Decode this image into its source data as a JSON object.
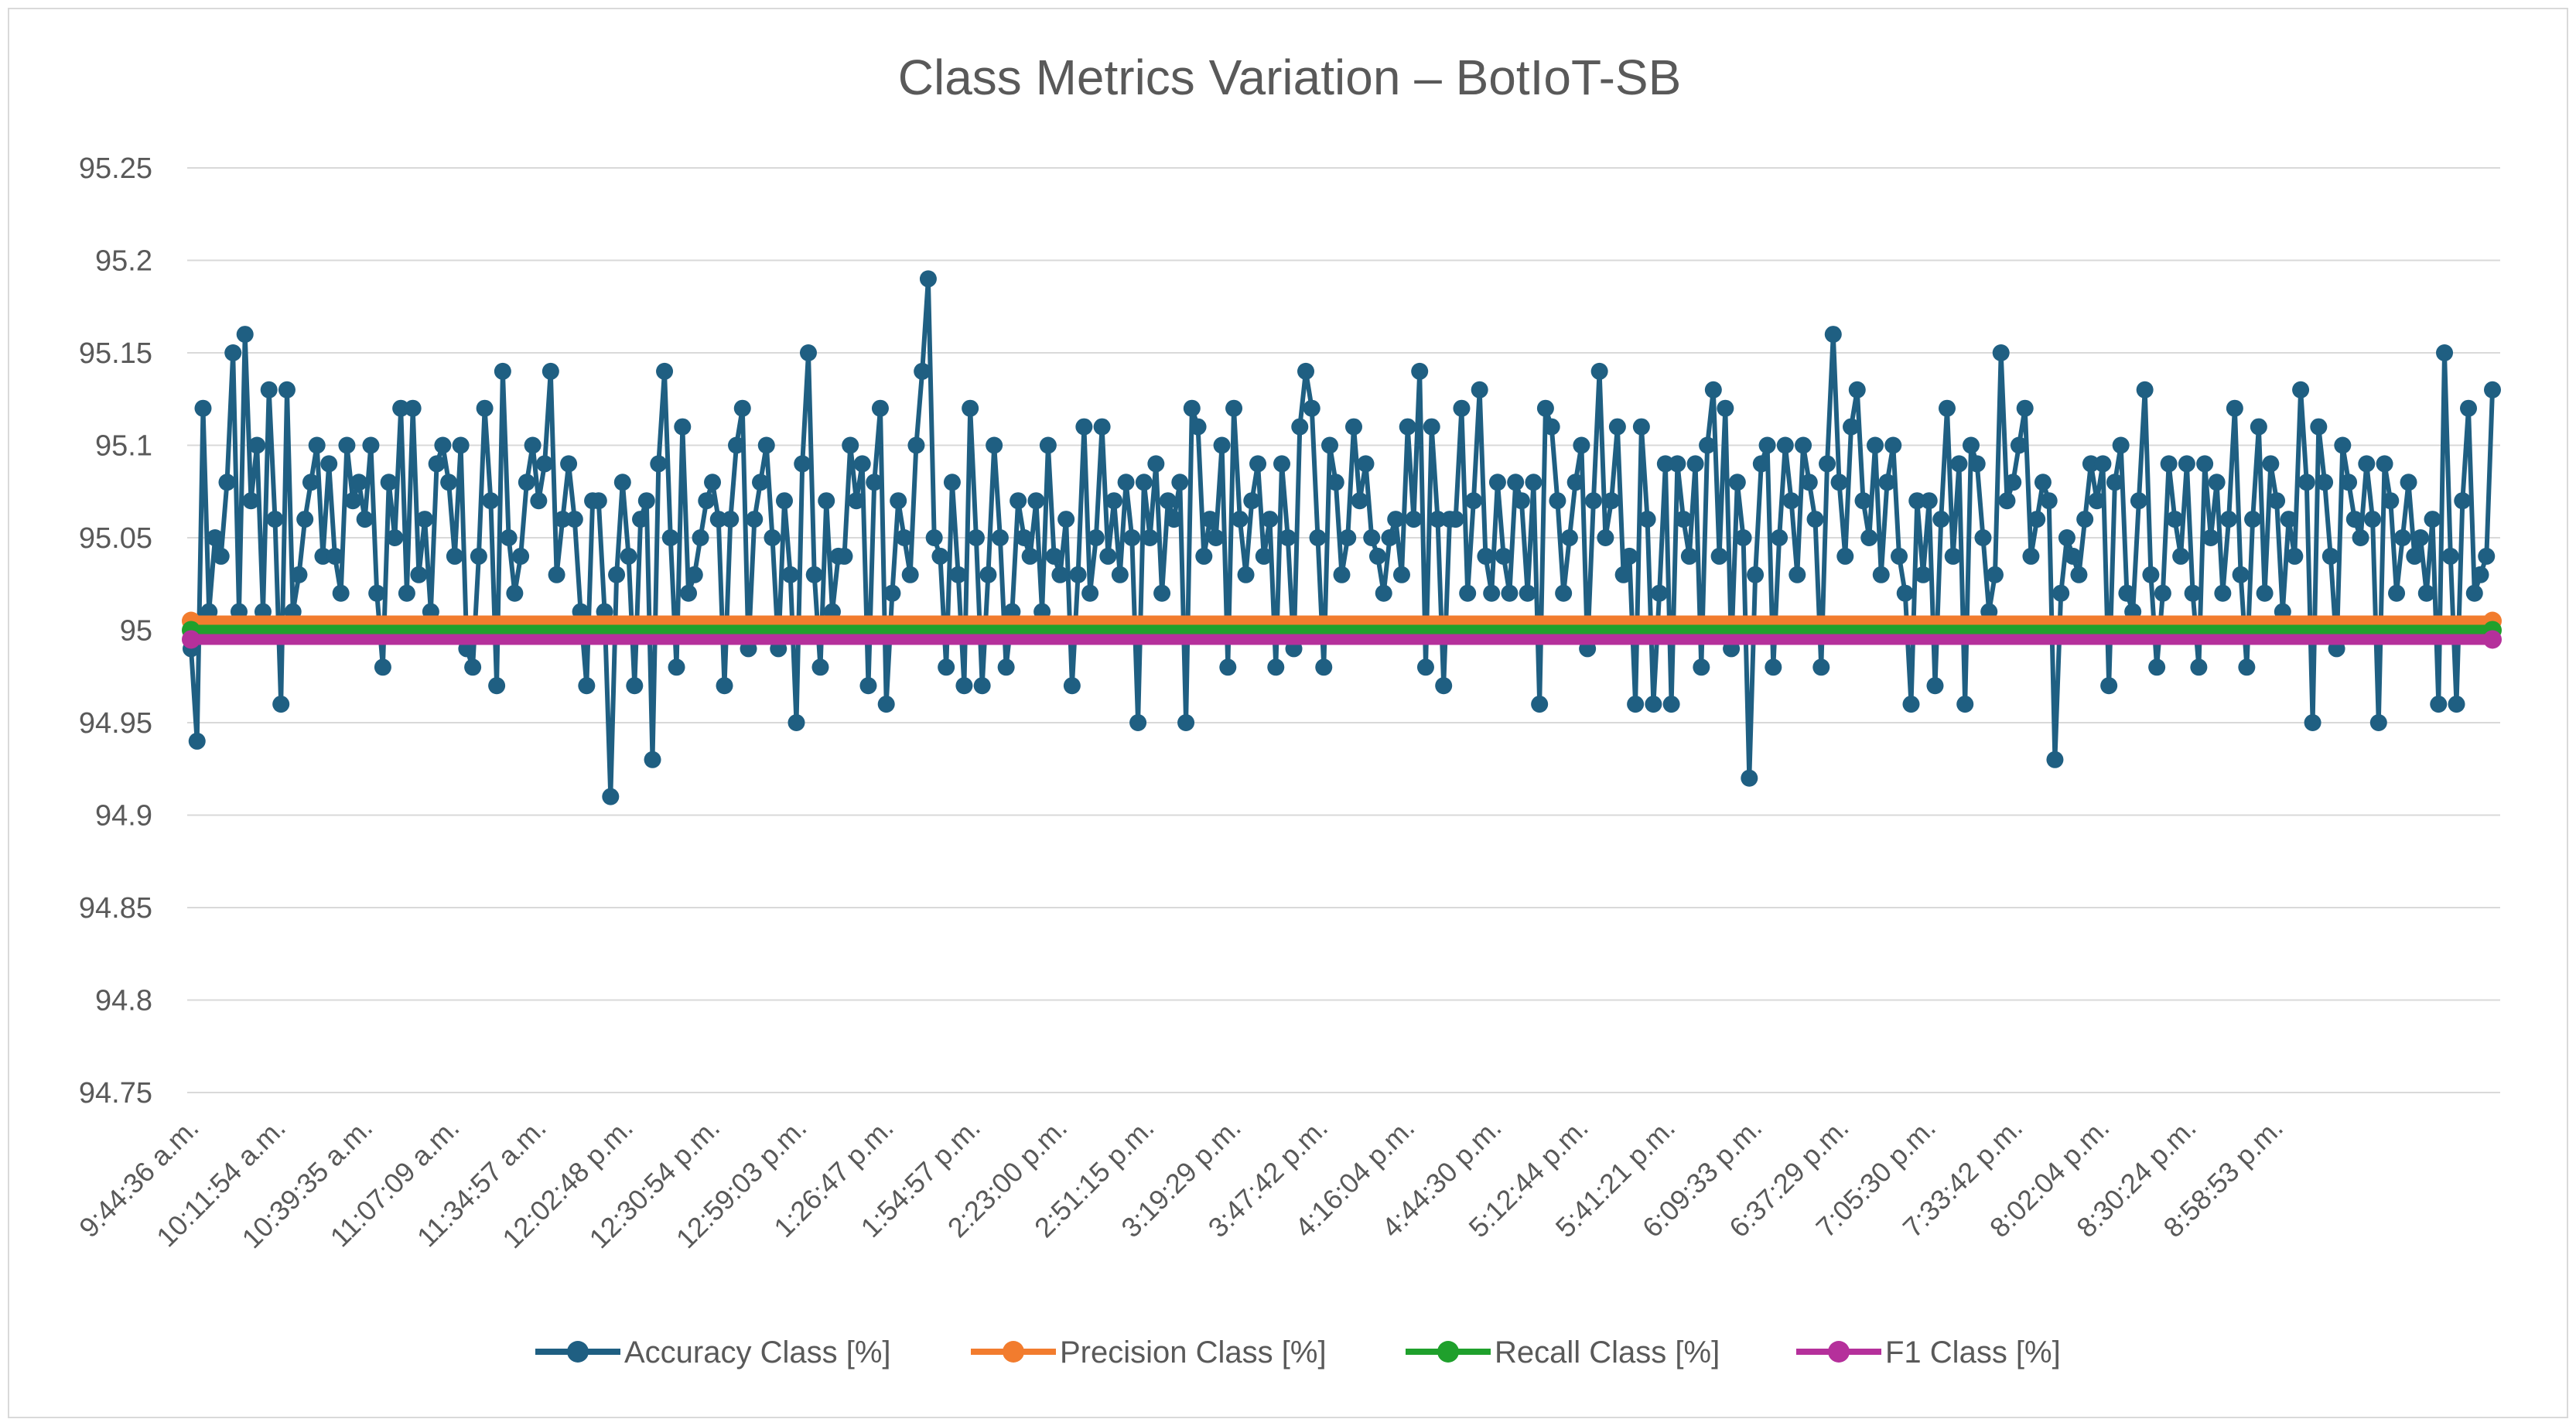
{
  "chart_data": {
    "type": "line",
    "title": "Class Metrics Variation – BotIoT-SB",
    "xlabel": "",
    "ylabel": "",
    "ylim": [
      94.75,
      95.25
    ],
    "yticks": [
      "95.25",
      "95.2",
      "95.15",
      "95.1",
      "95.05",
      "95",
      "94.95",
      "94.9",
      "94.85",
      "94.8",
      "94.75"
    ],
    "ytick_values": [
      95.25,
      95.2,
      95.15,
      95.1,
      95.05,
      95.0,
      94.95,
      94.9,
      94.85,
      94.8,
      94.75
    ],
    "grid": true,
    "legend_position": "bottom",
    "x_tick_labels": [
      "9:44:36 a.m.",
      "10:11:54 a.m.",
      "10:39:35 a.m.",
      "11:07:09 a.m.",
      "11:34:57 a.m.",
      "12:02:48 p.m.",
      "12:30:54 p.m.",
      "12:59:03 p.m.",
      "1:26:47 p.m.",
      "1:54:57 p.m.",
      "2:23:00 p.m.",
      "2:51:15 p.m.",
      "3:19:29 p.m.",
      "3:47:42 p.m.",
      "4:16:04 p.m.",
      "4:44:30 p.m.",
      "5:12:44 p.m.",
      "5:41:21 p.m.",
      "6:09:33 p.m.",
      "6:37:29 p.m.",
      "7:05:30 p.m.",
      "7:33:42 p.m.",
      "8:02:04 p.m.",
      "8:30:24 p.m.",
      "8:58:53 p.m."
    ],
    "series": [
      {
        "name": "Accuracy Class [%]",
        "color": "#1f5f82",
        "values": [
          94.99,
          94.94,
          95.12,
          95.01,
          95.05,
          95.04,
          95.08,
          95.15,
          95.01,
          95.16,
          95.07,
          95.1,
          95.01,
          95.13,
          95.06,
          94.96,
          95.13,
          95.01,
          95.03,
          95.06,
          95.08,
          95.1,
          95.04,
          95.09,
          95.04,
          95.02,
          95.1,
          95.07,
          95.08,
          95.06,
          95.1,
          95.02,
          94.98,
          95.08,
          95.05,
          95.12,
          95.02,
          95.12,
          95.03,
          95.06,
          95.01,
          95.09,
          95.1,
          95.08,
          95.04,
          95.1,
          94.99,
          94.98,
          95.04,
          95.12,
          95.07,
          94.97,
          95.14,
          95.05,
          95.02,
          95.04,
          95.08,
          95.1,
          95.07,
          95.09,
          95.14,
          95.03,
          95.06,
          95.09,
          95.06,
          95.01,
          94.97,
          95.07,
          95.07,
          95.01,
          94.91,
          95.03,
          95.08,
          95.04,
          94.97,
          95.06,
          95.07,
          94.93,
          95.09,
          95.14,
          95.05,
          94.98,
          95.11,
          95.02,
          95.03,
          95.05,
          95.07,
          95.08,
          95.06,
          94.97,
          95.06,
          95.1,
          95.12,
          94.99,
          95.06,
          95.08,
          95.1,
          95.05,
          94.99,
          95.07,
          95.03,
          94.95,
          95.09,
          95.15,
          95.03,
          94.98,
          95.07,
          95.01,
          95.04,
          95.04,
          95.1,
          95.07,
          95.09,
          94.97,
          95.08,
          95.12,
          94.96,
          95.02,
          95.07,
          95.05,
          95.03,
          95.1,
          95.14,
          95.19,
          95.05,
          95.04,
          94.98,
          95.08,
          95.03,
          94.97,
          95.12,
          95.05,
          94.97,
          95.03,
          95.1,
          95.05,
          94.98,
          95.01,
          95.07,
          95.05,
          95.04,
          95.07,
          95.01,
          95.1,
          95.04,
          95.03,
          95.06,
          94.97,
          95.03,
          95.11,
          95.02,
          95.05,
          95.11,
          95.04,
          95.07,
          95.03,
          95.08,
          95.05,
          94.95,
          95.08,
          95.05,
          95.09,
          95.02,
          95.07,
          95.06,
          95.08,
          94.95,
          95.12,
          95.11,
          95.04,
          95.06,
          95.05,
          95.1,
          94.98,
          95.12,
          95.06,
          95.03,
          95.07,
          95.09,
          95.04,
          95.06,
          94.98,
          95.09,
          95.05,
          94.99,
          95.11,
          95.14,
          95.12,
          95.05,
          94.98,
          95.1,
          95.08,
          95.03,
          95.05,
          95.11,
          95.07,
          95.09,
          95.05,
          95.04,
          95.02,
          95.05,
          95.06,
          95.03,
          95.11,
          95.06,
          95.14,
          94.98,
          95.11,
          95.06,
          94.97,
          95.06,
          95.06,
          95.12,
          95.02,
          95.07,
          95.13,
          95.04,
          95.02,
          95.08,
          95.04,
          95.02,
          95.08,
          95.07,
          95.02,
          95.08,
          94.96,
          95.12,
          95.11,
          95.07,
          95.02,
          95.05,
          95.08,
          95.1,
          94.99,
          95.07,
          95.14,
          95.05,
          95.07,
          95.11,
          95.03,
          95.04,
          94.96,
          95.11,
          95.06,
          94.96,
          95.02,
          95.09,
          94.96,
          95.09,
          95.06,
          95.04,
          95.09,
          94.98,
          95.1,
          95.13,
          95.04,
          95.12,
          94.99,
          95.08,
          95.05,
          94.92,
          95.03,
          95.09,
          95.1,
          94.98,
          95.05,
          95.1,
          95.07,
          95.03,
          95.1,
          95.08,
          95.06,
          94.98,
          95.09,
          95.16,
          95.08,
          95.04,
          95.11,
          95.13,
          95.07,
          95.05,
          95.1,
          95.03,
          95.08,
          95.1,
          95.04,
          95.02,
          94.96,
          95.07,
          95.03,
          95.07,
          94.97,
          95.06,
          95.12,
          95.04,
          95.09,
          94.96,
          95.1,
          95.09,
          95.05,
          95.01,
          95.03,
          95.15,
          95.07,
          95.08,
          95.1,
          95.12,
          95.04,
          95.06,
          95.08,
          95.07,
          94.93,
          95.02,
          95.05,
          95.04,
          95.03,
          95.06,
          95.09,
          95.07,
          95.09,
          94.97,
          95.08,
          95.1,
          95.02,
          95.01,
          95.07,
          95.13,
          95.03,
          94.98,
          95.02,
          95.09,
          95.06,
          95.04,
          95.09,
          95.02,
          94.98,
          95.09,
          95.05,
          95.08,
          95.02,
          95.06,
          95.12,
          95.03,
          94.98,
          95.06,
          95.11,
          95.02,
          95.09,
          95.07,
          95.01,
          95.06,
          95.04,
          95.13,
          95.08,
          94.95,
          95.11,
          95.08,
          95.04,
          94.99,
          95.1,
          95.08,
          95.06,
          95.05,
          95.09,
          95.06,
          94.95,
          95.09,
          95.07,
          95.02,
          95.05,
          95.08,
          95.04,
          95.05,
          95.02,
          95.06,
          94.96,
          95.15,
          95.04,
          94.96,
          95.07,
          95.12,
          95.02,
          95.03,
          95.04,
          95.13
        ]
      },
      {
        "name": "Precision Class [%]",
        "color": "#f27c2e",
        "values": "constant",
        "constant_value": 95.005
      },
      {
        "name": "Recall Class [%]",
        "color": "#1fa02c",
        "values": "constant",
        "constant_value": 95.0
      },
      {
        "name": "F1 Class [%]",
        "color": "#b5309b",
        "values": "constant",
        "constant_value": 94.995
      }
    ]
  }
}
